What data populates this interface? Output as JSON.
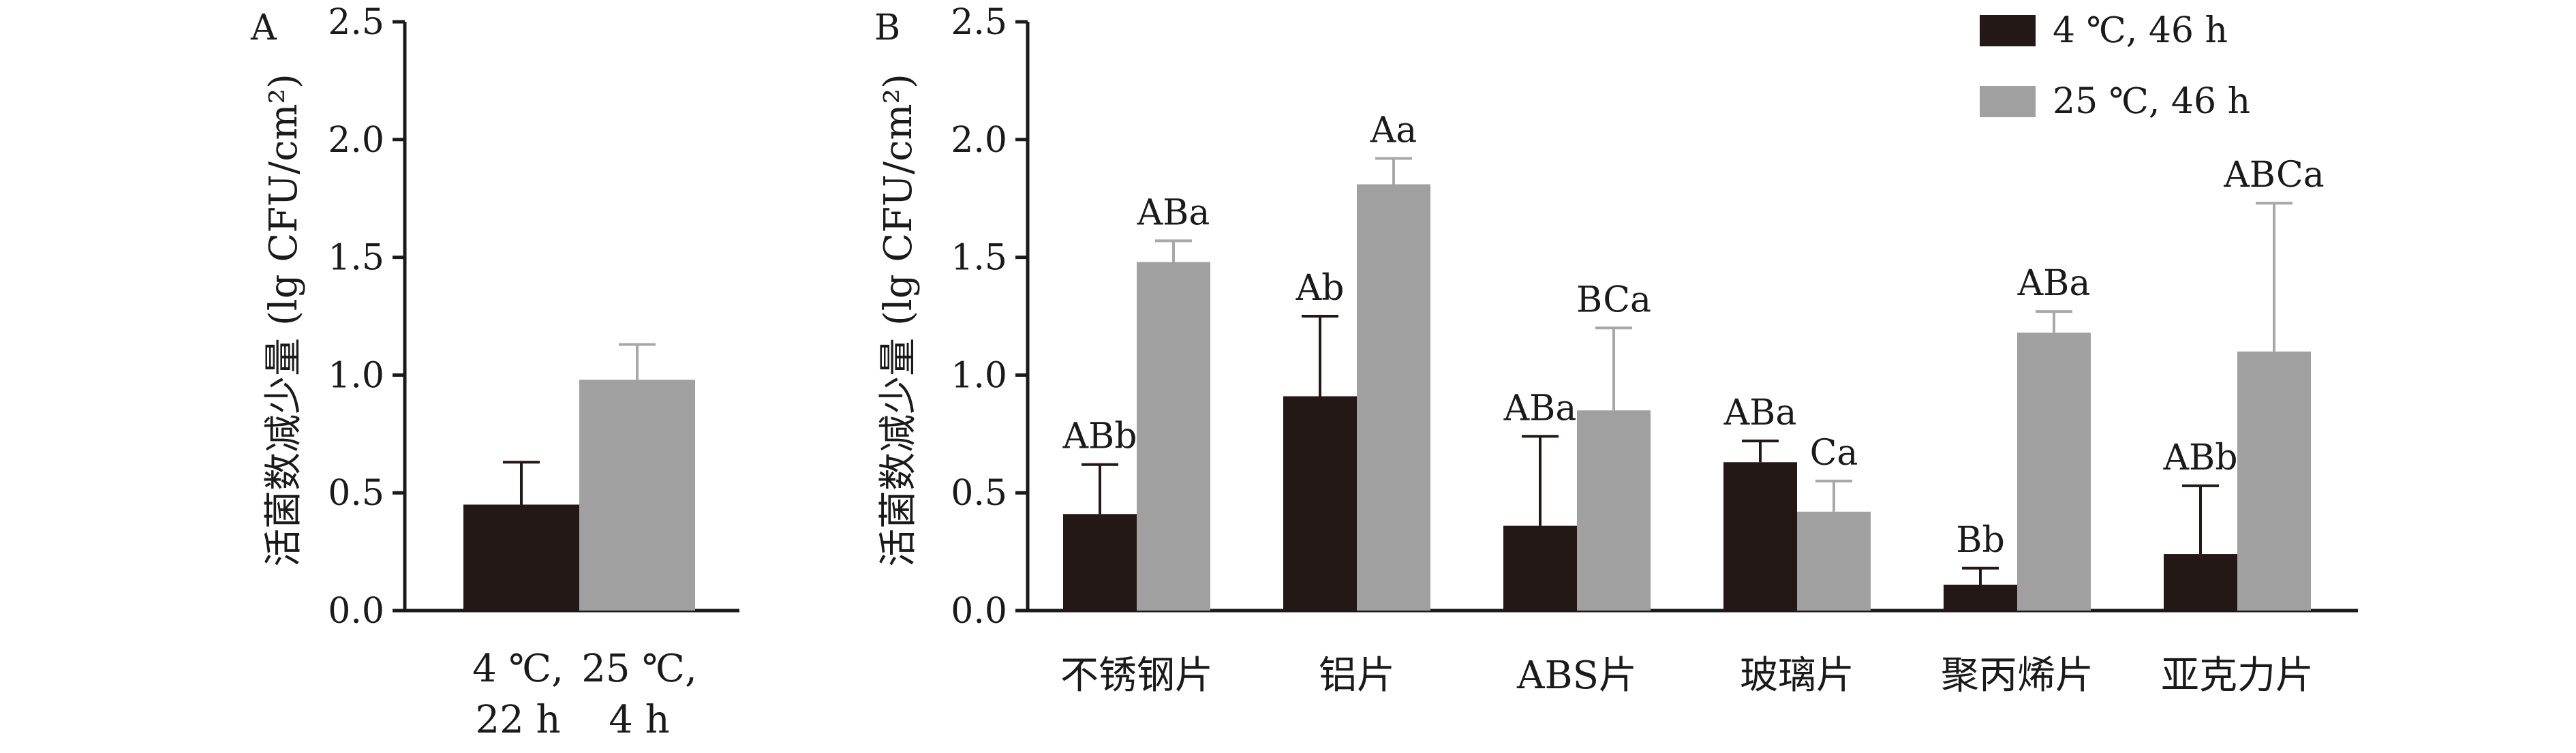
{
  "chart_data": [
    {
      "type": "bar",
      "panel_label": "A",
      "ylabel": "活菌数减少量 (lg CFU/cm²)",
      "ylim": [
        0,
        2.5
      ],
      "yticks": [
        "0.0",
        "0.5",
        "1.0",
        "1.5",
        "2.0",
        "2.5"
      ],
      "categories": [
        {
          "line1": "4 ℃,",
          "line2": "22 h"
        },
        {
          "line1": "25 ℃,",
          "line2": "4 h"
        }
      ],
      "bars": [
        {
          "value": 0.45,
          "err": 0.18,
          "color": "#231815"
        },
        {
          "value": 0.98,
          "err": 0.15,
          "color": "#a0a0a0"
        }
      ]
    },
    {
      "type": "bar",
      "panel_label": "B",
      "ylabel": "活菌数减少量 (lg CFU/cm²)",
      "ylim": [
        0,
        2.5
      ],
      "yticks": [
        "0.0",
        "0.5",
        "1.0",
        "1.5",
        "2.0",
        "2.5"
      ],
      "categories": [
        "不锈钢片",
        "铝片",
        "ABS片",
        "玻璃片",
        "聚丙烯片",
        "亚克力片"
      ],
      "series": [
        {
          "name": "4 ℃, 46 h",
          "color": "#231815",
          "values": [
            0.41,
            0.91,
            0.36,
            0.63,
            0.11,
            0.24
          ],
          "errors": [
            0.21,
            0.34,
            0.38,
            0.09,
            0.07,
            0.29
          ],
          "labels": [
            "ABb",
            "Ab",
            "ABa",
            "ABa",
            "Bb",
            "ABb"
          ]
        },
        {
          "name": "25 ℃, 46 h",
          "color": "#a0a0a0",
          "values": [
            1.48,
            1.81,
            0.85,
            0.42,
            1.18,
            1.1
          ],
          "errors": [
            0.09,
            0.11,
            0.35,
            0.13,
            0.09,
            0.63
          ],
          "labels": [
            "ABa",
            "Aa",
            "BCa",
            "Ca",
            "ABa",
            "ABCa"
          ]
        }
      ],
      "legend_position": "top-right"
    }
  ]
}
